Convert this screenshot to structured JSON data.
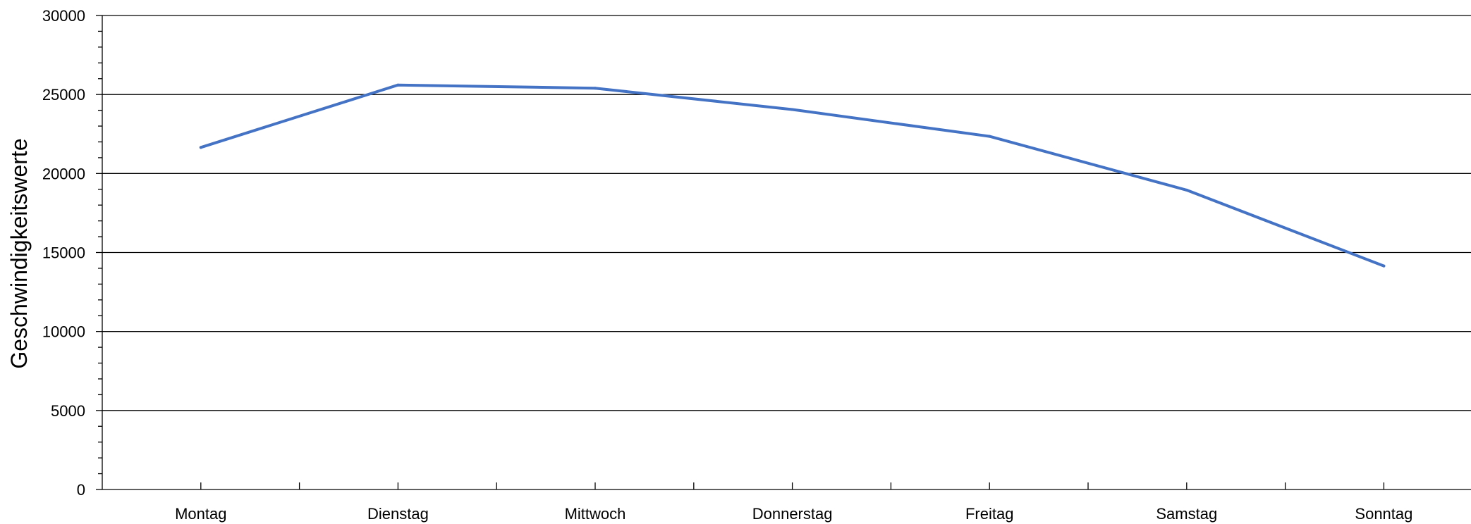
{
  "chart_data": {
    "type": "line",
    "categories": [
      "Montag",
      "Dienstag",
      "Mittwoch",
      "Donnerstag",
      "Freitag",
      "Samstag",
      "Sonntag"
    ],
    "series": [
      {
        "values": [
          21650,
          25600,
          25400,
          24050,
          22350,
          18950,
          14150
        ],
        "color": "#4472C4"
      }
    ],
    "xlabel": "",
    "ylabel": "Geschwindigkeitswerte",
    "ylim": [
      0,
      30000
    ],
    "y_major_ticks": [
      "0",
      "5000",
      "10000",
      "15000",
      "20000",
      "25000",
      "30000"
    ],
    "y_minor_step": 1000,
    "grid": true,
    "legend": "none"
  }
}
